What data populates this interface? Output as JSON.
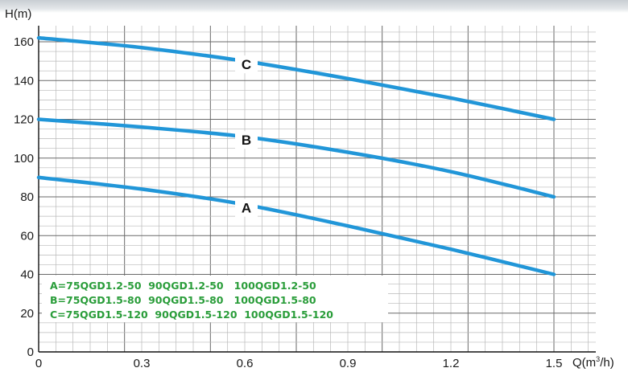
{
  "chart_data": {
    "type": "line",
    "ylabel": "H(m)",
    "xlabel": "Q(m",
    "xlabel_sup": "3",
    "xlabel_tail": "/h)",
    "x_ticks": [
      "0",
      "0.3",
      "0.6",
      "0.9",
      "1.2",
      "1.5"
    ],
    "y_ticks": [
      "0",
      "20",
      "40",
      "60",
      "80",
      "100",
      "120",
      "140",
      "160"
    ],
    "xlim": [
      0,
      1.5
    ],
    "ylim": [
      0,
      160
    ],
    "grid": true,
    "x": [
      0,
      0.3,
      0.6,
      0.9,
      1.2,
      1.5
    ],
    "series": [
      {
        "name": "A",
        "values": [
          90,
          84,
          76,
          65,
          53,
          40
        ]
      },
      {
        "name": "B",
        "values": [
          120,
          116,
          111,
          103,
          93,
          80
        ]
      },
      {
        "name": "C",
        "values": [
          162,
          157,
          150,
          141,
          131,
          120
        ]
      }
    ],
    "curve_label_x": 0.9,
    "series_color": "#2196d8",
    "legend_color": "#2a9d3a",
    "legend": [
      "A=75QGD1.2-50  90QGD1.2-50   100QGD1.2-50",
      "B=75QGD1.5-80  90QGD1.5-80   100QGD1.5-80",
      "C=75QGD1.5-120  90QGD1.5-120  100QGD1.5-120"
    ]
  }
}
